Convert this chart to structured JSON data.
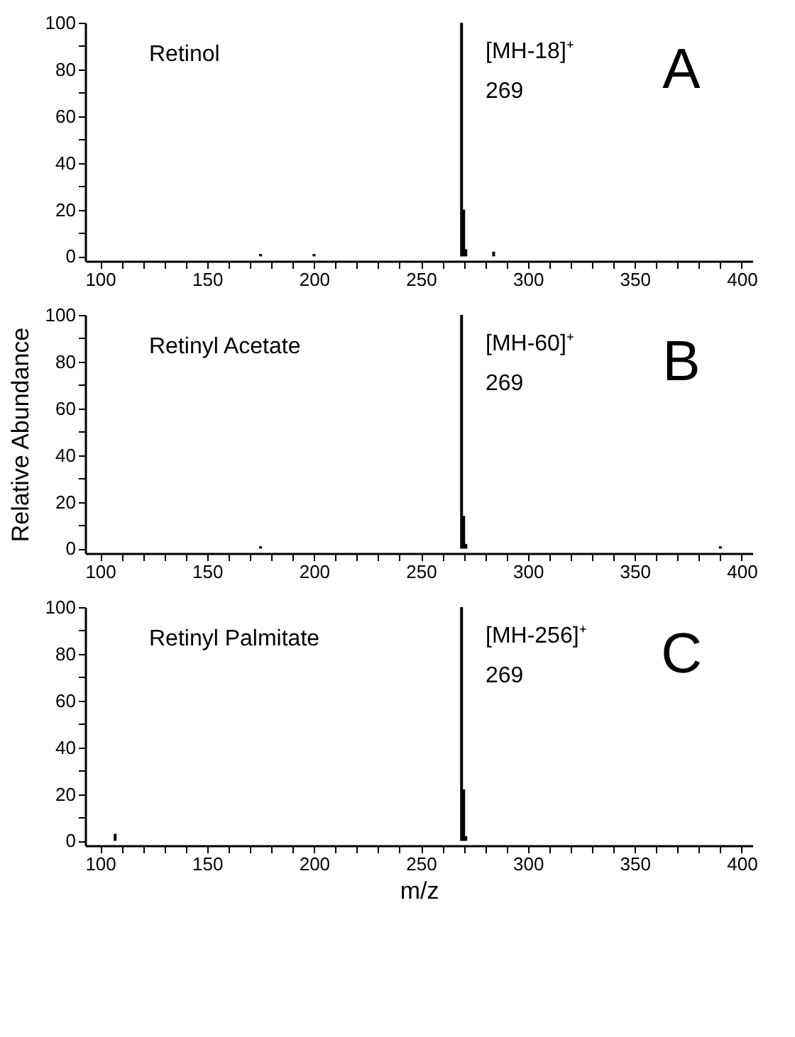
{
  "chart_data": [
    {
      "type": "bar",
      "x": [
        175,
        200,
        269,
        270,
        271,
        284
      ],
      "values": [
        1,
        1,
        100,
        20,
        3,
        2
      ],
      "color": "#000000",
      "xlim": [
        93,
        405
      ],
      "ylim": [
        -2,
        100
      ],
      "xticks": [
        100,
        {
          "value": 110,
          "label": null
        },
        {
          "value": 120,
          "label": null
        },
        {
          "value": 130,
          "label": null
        },
        {
          "value": 140,
          "label": null
        },
        150,
        {
          "value": 160,
          "label": null
        },
        {
          "value": 170,
          "label": null
        },
        {
          "value": 180,
          "label": null
        },
        {
          "value": 190,
          "label": null
        },
        200,
        {
          "value": 210,
          "label": null
        },
        {
          "value": 220,
          "label": null
        },
        {
          "value": 230,
          "label": null
        },
        {
          "value": 240,
          "label": null
        },
        250,
        {
          "value": 260,
          "label": null
        },
        {
          "value": 270,
          "label": null
        },
        {
          "value": 280,
          "label": null
        },
        {
          "value": 290,
          "label": null
        },
        300,
        {
          "value": 310,
          "label": null
        },
        {
          "value": 320,
          "label": null
        },
        {
          "value": 330,
          "label": null
        },
        {
          "value": 340,
          "label": null
        },
        350,
        {
          "value": 360,
          "label": null
        },
        {
          "value": 370,
          "label": null
        },
        {
          "value": 380,
          "label": null
        },
        {
          "value": 390,
          "label": null
        },
        400
      ],
      "yticks": [
        0,
        {
          "value": 10,
          "label": null
        },
        20,
        {
          "value": 30,
          "label": null
        },
        40,
        {
          "value": 50,
          "label": null
        },
        60,
        {
          "value": 70,
          "label": null
        },
        80,
        {
          "value": 90,
          "label": null
        },
        100
      ],
      "annotations": [
        "Retinol",
        "A",
        "[MH-18]⁺",
        "269"
      ]
    },
    {
      "type": "bar",
      "x": [
        175,
        269,
        270,
        271,
        390
      ],
      "values": [
        1,
        100,
        14,
        2,
        1
      ],
      "color": "#000000",
      "xlim": [
        93,
        405
      ],
      "ylim": [
        -2,
        100
      ],
      "ylabel": "Relative Abundance",
      "xticks": [
        100,
        {
          "value": 110,
          "label": null
        },
        {
          "value": 120,
          "label": null
        },
        {
          "value": 130,
          "label": null
        },
        {
          "value": 140,
          "label": null
        },
        150,
        {
          "value": 160,
          "label": null
        },
        {
          "value": 170,
          "label": null
        },
        {
          "value": 180,
          "label": null
        },
        {
          "value": 190,
          "label": null
        },
        200,
        {
          "value": 210,
          "label": null
        },
        {
          "value": 220,
          "label": null
        },
        {
          "value": 230,
          "label": null
        },
        {
          "value": 240,
          "label": null
        },
        250,
        {
          "value": 260,
          "label": null
        },
        {
          "value": 270,
          "label": null
        },
        {
          "value": 280,
          "label": null
        },
        {
          "value": 290,
          "label": null
        },
        300,
        {
          "value": 310,
          "label": null
        },
        {
          "value": 320,
          "label": null
        },
        {
          "value": 330,
          "label": null
        },
        {
          "value": 340,
          "label": null
        },
        350,
        {
          "value": 360,
          "label": null
        },
        {
          "value": 370,
          "label": null
        },
        {
          "value": 380,
          "label": null
        },
        {
          "value": 390,
          "label": null
        },
        400
      ],
      "yticks": [
        0,
        {
          "value": 10,
          "label": null
        },
        20,
        {
          "value": 30,
          "label": null
        },
        40,
        {
          "value": 50,
          "label": null
        },
        60,
        {
          "value": 70,
          "label": null
        },
        80,
        {
          "value": 90,
          "label": null
        },
        100
      ],
      "annotations": [
        "Retinyl Acetate",
        "B",
        "[MH-60]⁺",
        "269"
      ]
    },
    {
      "type": "bar",
      "x": [
        107,
        269,
        270,
        271
      ],
      "values": [
        3,
        100,
        22,
        2
      ],
      "color": "#000000",
      "xlim": [
        93,
        405
      ],
      "ylim": [
        -2,
        100
      ],
      "xlabel": "m/z",
      "xticks": [
        100,
        {
          "value": 110,
          "label": null
        },
        {
          "value": 120,
          "label": null
        },
        {
          "value": 130,
          "label": null
        },
        {
          "value": 140,
          "label": null
        },
        150,
        {
          "value": 160,
          "label": null
        },
        {
          "value": 170,
          "label": null
        },
        {
          "value": 180,
          "label": null
        },
        {
          "value": 190,
          "label": null
        },
        200,
        {
          "value": 210,
          "label": null
        },
        {
          "value": 220,
          "label": null
        },
        {
          "value": 230,
          "label": null
        },
        {
          "value": 240,
          "label": null
        },
        250,
        {
          "value": 260,
          "label": null
        },
        {
          "value": 270,
          "label": null
        },
        {
          "value": 280,
          "label": null
        },
        {
          "value": 290,
          "label": null
        },
        300,
        {
          "value": 310,
          "label": null
        },
        {
          "value": 320,
          "label": null
        },
        {
          "value": 330,
          "label": null
        },
        {
          "value": 340,
          "label": null
        },
        350,
        {
          "value": 360,
          "label": null
        },
        {
          "value": 370,
          "label": null
        },
        {
          "value": 380,
          "label": null
        },
        {
          "value": 390,
          "label": null
        },
        400
      ],
      "yticks": [
        0,
        {
          "value": 10,
          "label": null
        },
        20,
        {
          "value": 30,
          "label": null
        },
        40,
        {
          "value": 50,
          "label": null
        },
        60,
        {
          "value": 70,
          "label": null
        },
        80,
        {
          "value": 90,
          "label": null
        },
        100
      ],
      "annotations": [
        "Retinyl Palmitate",
        "C",
        "[MH-256]⁺",
        "269"
      ]
    }
  ]
}
